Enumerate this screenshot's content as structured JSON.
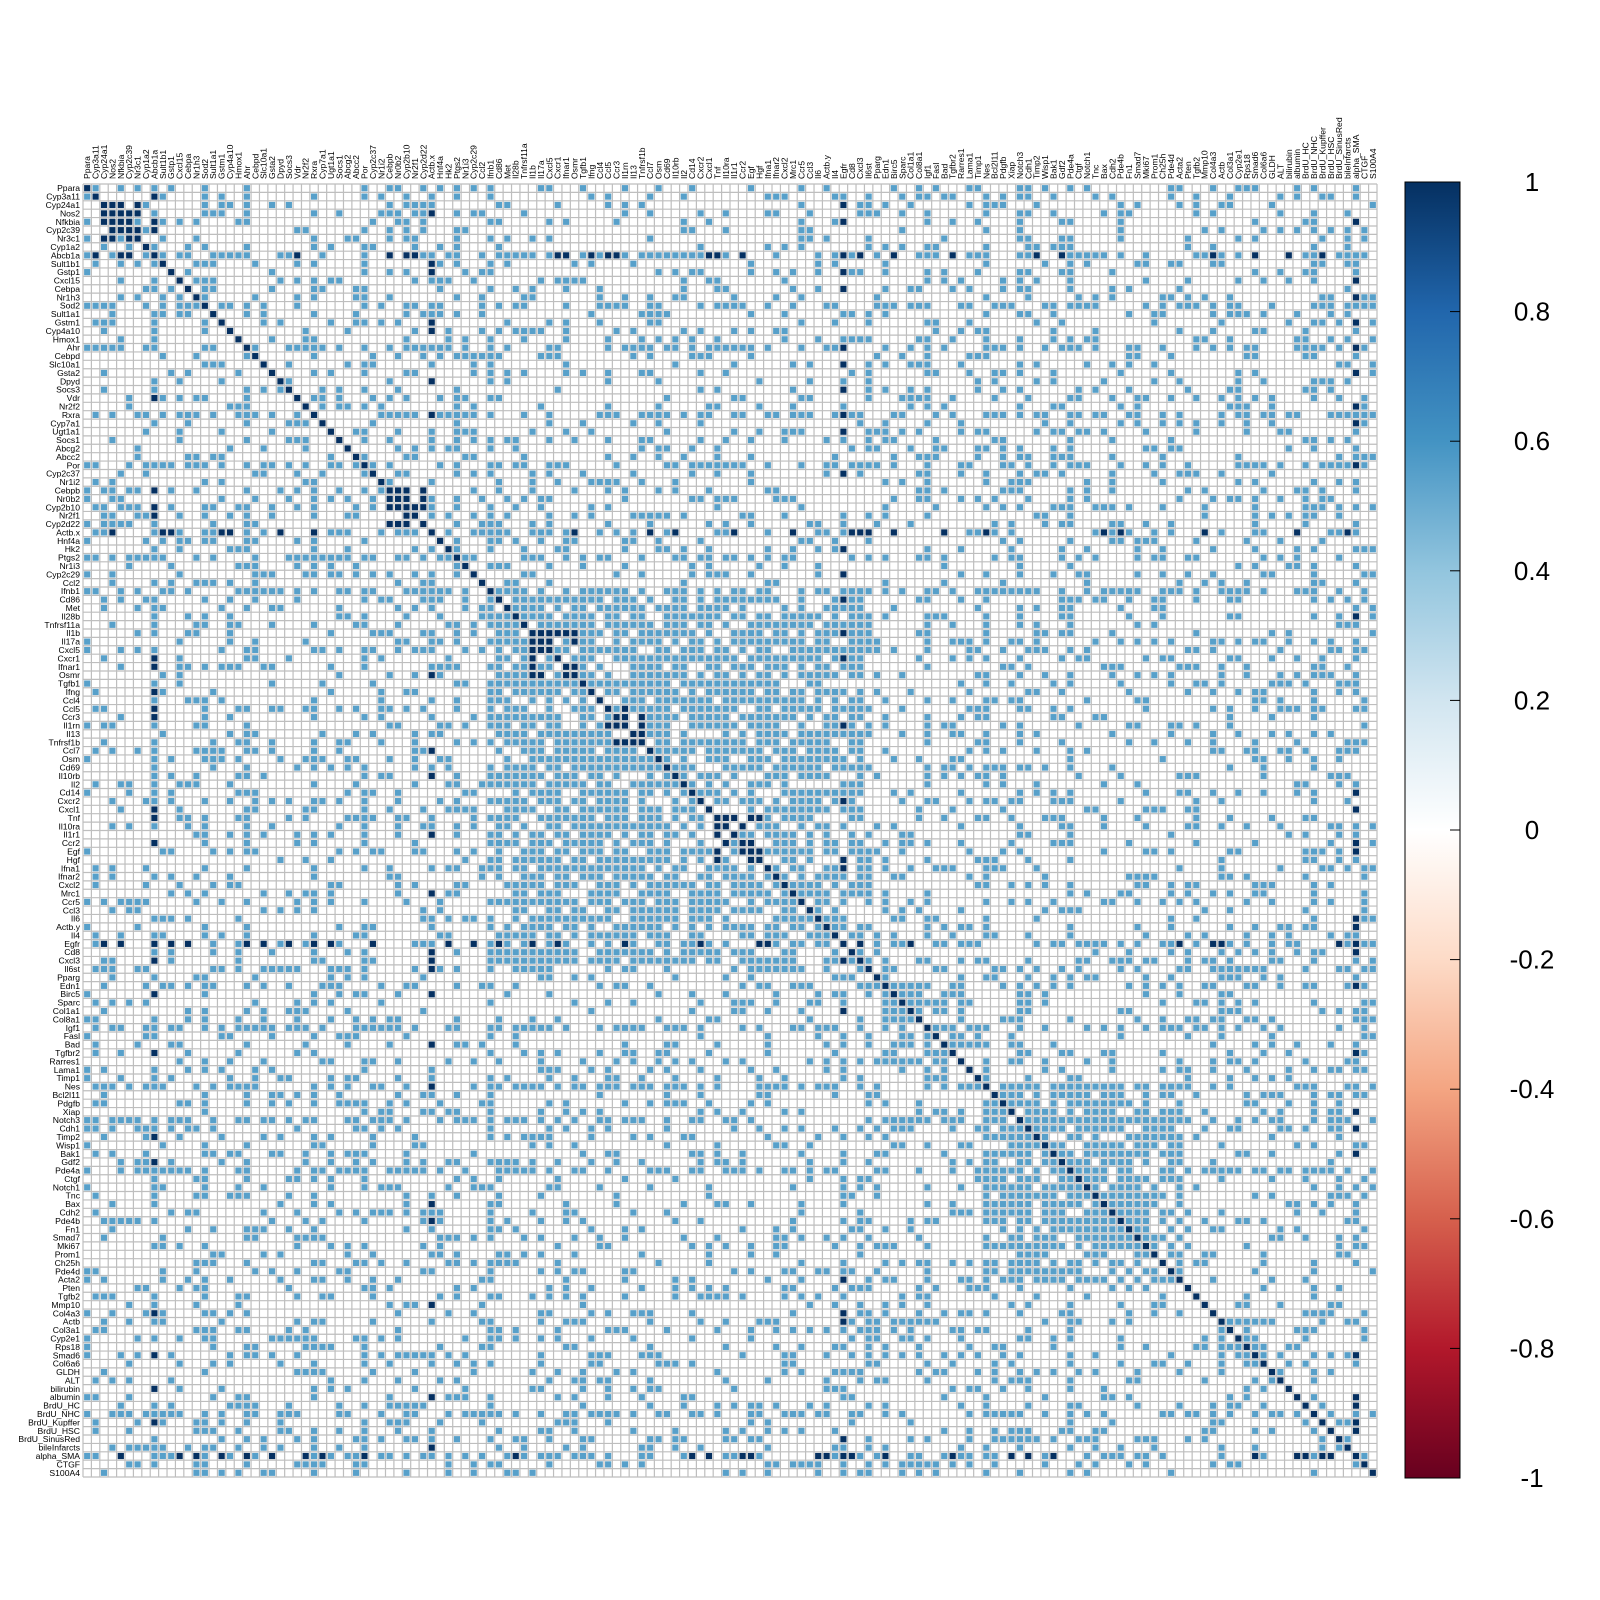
{
  "chart_data": {
    "type": "heatmap",
    "variables": [
      "Ppara",
      "Cyp3a11",
      "Cyp24a1",
      "Nos2",
      "Nfkbia",
      "Cyp2c39",
      "Nr3c1",
      "Cyp1a2",
      "Abcb1a",
      "Sult1b1",
      "Gstp1",
      "Cxcl15",
      "Cebpa",
      "Nr1h3",
      "Sod2",
      "Sult1a1",
      "Gstm1",
      "Cyp4a10",
      "Hmox1",
      "Ahr",
      "Cebpd",
      "Slc10a1",
      "Gsta2",
      "Dpyd",
      "Socs3",
      "Vdr",
      "Nr2f2",
      "Rxra",
      "Cyp7a1",
      "Ugt1a1",
      "Socs1",
      "Abcg2",
      "Abcc2",
      "Por",
      "Cyp2c37",
      "Nr1i2",
      "Cebpb",
      "Nr0b2",
      "Cyp2b10",
      "Nr2f1",
      "Cyp2d22",
      "Actb.x",
      "Hnf4a",
      "Hk2",
      "Ptgs2",
      "Nr1i3",
      "Cyp2c29",
      "Ccl2",
      "Ifnb1",
      "Cd86",
      "Met",
      "Il28b",
      "Tnfrsf11a",
      "Il1b",
      "Il17a",
      "Cxcl5",
      "Cxcr1",
      "Ifnar1",
      "Osmr",
      "Tgfb1",
      "Ifng",
      "Ccl4",
      "Ccl5",
      "Ccr3",
      "Il1rn",
      "Il13",
      "Tnfrsf1b",
      "Ccl7",
      "Osm",
      "Cd69",
      "Il10rb",
      "Il2",
      "Cd14",
      "Cxcr2",
      "Cxcl1",
      "Tnf",
      "Il10ra",
      "Il1r1",
      "Ccr2",
      "Egf",
      "Hgf",
      "Ifna1",
      "Ifnar2",
      "Cxcl2",
      "Mrc1",
      "Ccr5",
      "Ccl3",
      "Il6",
      "Actb.y",
      "Il4",
      "Egfr",
      "Cd8",
      "Cxcl3",
      "Il6st",
      "Pparg",
      "Edn1",
      "Birc5",
      "Sparc",
      "Col1a1",
      "Col8a1",
      "Igf1",
      "Fasl",
      "Bad",
      "Tgfbr2",
      "Rarres1",
      "Lama1",
      "Timp1",
      "Nes",
      "Bcl2l11",
      "Pdgfb",
      "Xiap",
      "Notch3",
      "Cdh1",
      "Timp2",
      "Wisp1",
      "Bak1",
      "Gdf2",
      "Pde4a",
      "Ctgf",
      "Notch1",
      "Tnc",
      "Bax",
      "Cdh2",
      "Pde4b",
      "Fn1",
      "Smad7",
      "Mki67",
      "Prom1",
      "Ch25h",
      "Pde4d",
      "Acta2",
      "Pten",
      "Tgfb2",
      "Mmp10",
      "Col4a3",
      "Actb",
      "Col3a1",
      "Cyp2e1",
      "Rps18",
      "Smad6",
      "Col6a6",
      "GLDH",
      "ALT",
      "bilirubin",
      "albumin",
      "BrdU_HC",
      "BrdU_NHC",
      "BrdU_Kupffer",
      "BrdU_HSC",
      "BrdU_SinusRed",
      "bileInfarcts",
      "alpha_SMA",
      "CTGF",
      "S100A4"
    ],
    "row_label_overrides": {
      "158": "dU_SinusRed"
    },
    "value_range": [
      -1,
      1
    ],
    "colorbar": {
      "ticks": [
        1,
        0.8,
        0.6,
        0.4,
        0.2,
        0,
        -0.2,
        -0.4,
        -0.6,
        -0.8,
        -1
      ],
      "tick_labels": [
        "1",
        "0.8",
        "0.6",
        "0.4",
        "0.2",
        "0",
        "-0.2",
        "-0.4",
        "-0.6",
        "-0.8",
        "-1"
      ],
      "stops": [
        {
          "v": -1.0,
          "color": "#67001F"
        },
        {
          "v": -0.8,
          "color": "#B2182B"
        },
        {
          "v": -0.6,
          "color": "#D6604D"
        },
        {
          "v": -0.4,
          "color": "#F4A582"
        },
        {
          "v": -0.2,
          "color": "#FDDBC7"
        },
        {
          "v": 0.0,
          "color": "#FFFFFF"
        },
        {
          "v": 0.2,
          "color": "#D1E5F0"
        },
        {
          "v": 0.4,
          "color": "#92C5DE"
        },
        {
          "v": 0.6,
          "color": "#4393C3"
        },
        {
          "v": 0.8,
          "color": "#2166AC"
        },
        {
          "v": 1.0,
          "color": "#053061"
        }
      ]
    },
    "strong_blocks": [
      {
        "rows": [
          2,
          6
        ],
        "cols": [
          2,
          6
        ],
        "value": 1
      },
      {
        "rows": [
          36,
          40
        ],
        "cols": [
          36,
          40
        ],
        "value": 1
      },
      {
        "rows": [
          2,
          6
        ],
        "cols": [
          36,
          40
        ],
        "value": 0.9
      },
      {
        "rows": [
          36,
          40
        ],
        "cols": [
          2,
          6
        ],
        "value": 0.9
      },
      {
        "rows": [
          48,
          92
        ],
        "cols": [
          48,
          92
        ],
        "value": 0.55
      },
      {
        "rows": [
          53,
          58
        ],
        "cols": [
          53,
          58
        ],
        "value": 1
      },
      {
        "rows": [
          62,
          66
        ],
        "cols": [
          62,
          66
        ],
        "value": 1
      },
      {
        "rows": [
          75,
          80
        ],
        "cols": [
          75,
          80
        ],
        "value": 1
      },
      {
        "rows": [
          95,
          104
        ],
        "cols": [
          95,
          104
        ],
        "value": 0.55
      },
      {
        "rows": [
          107,
          130
        ],
        "cols": [
          107,
          130
        ],
        "value": 0.5
      },
      {
        "rows": [
          135,
          140
        ],
        "cols": [
          135,
          140
        ],
        "value": 0.55
      },
      {
        "rows": [
          156,
          162
        ],
        "cols": [
          156,
          162
        ],
        "value": 1
      }
    ],
    "medium_cols": [
      8,
      14,
      19,
      27,
      33,
      41,
      44,
      48,
      90,
      93,
      100,
      107,
      111,
      117,
      146,
      151,
      158,
      160,
      161,
      162
    ],
    "strong_cols": [
      8,
      41,
      90,
      151,
      158,
      159,
      160,
      161,
      162
    ]
  },
  "colors": {
    "grid": "#BEBEBE",
    "border": "#BEBEBE",
    "cell_empty": "#FFFFFF"
  }
}
